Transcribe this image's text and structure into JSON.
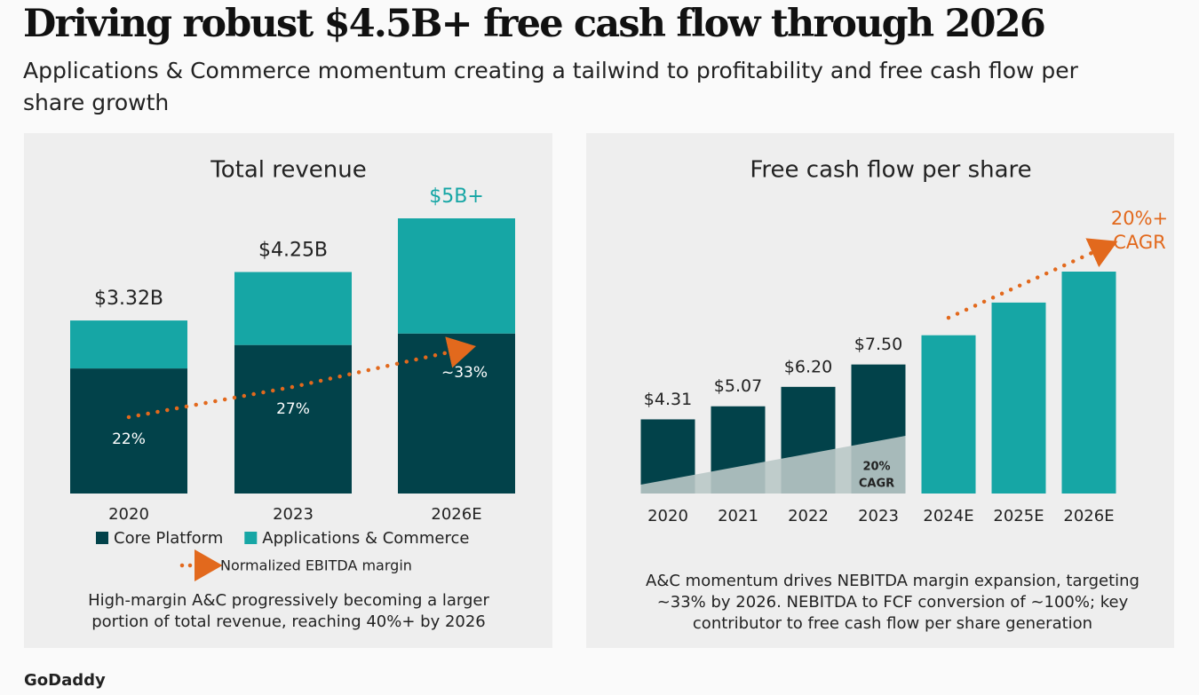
{
  "title": "Driving robust $4.5B+ free cash flow through 2026",
  "subtitle": "Applications & Commerce momentum creating a tailwind to profitability and free cash flow per share growth",
  "logo": "GoDaddy",
  "chart_data": [
    {
      "type": "stacked-bar",
      "title": "Total revenue",
      "categories": [
        "2020",
        "2023",
        "2026E"
      ],
      "series": [
        {
          "name": "Core Platform",
          "color": "#02424a",
          "values": [
            2.4,
            2.85,
            3.07
          ]
        },
        {
          "name": "Applications & Commerce",
          "color": "#16a6a5",
          "values": [
            0.92,
            1.4,
            2.21
          ]
        }
      ],
      "totals": {
        "values": [
          3.32,
          4.25,
          5.28
        ],
        "value_labels": [
          "$3.32B",
          "$4.25B",
          "$5B+"
        ],
        "colors": [
          "#222222",
          "#222222",
          "#16a6a5"
        ]
      },
      "margin": {
        "name": "Normalized EBITDA margin",
        "color": "#e2691d",
        "values": [
          22,
          27,
          33
        ],
        "value_labels": [
          "22%",
          "27%",
          "~33%"
        ]
      },
      "caption": "High-margin A&C progressively becoming a larger portion of total revenue, reaching 40%+ by 2026"
    },
    {
      "type": "bar",
      "title": "Free cash flow per share",
      "categories": [
        "2020",
        "2021",
        "2022",
        "2023",
        "2024E",
        "2025E",
        "2026E"
      ],
      "values": [
        4.31,
        5.07,
        6.2,
        7.5,
        9.2,
        11.1,
        12.9
      ],
      "value_labels": [
        "$4.31",
        "$5.07",
        "$6.20",
        "$7.50",
        null,
        null,
        null
      ],
      "colors": [
        "#02424a",
        "#02424a",
        "#02424a",
        "#02424a",
        "#16a6a5",
        "#16a6a5",
        "#16a6a5"
      ],
      "inner_annotation": [
        "20%",
        "CAGR"
      ],
      "outer_annotation": [
        "20%+",
        "CAGR"
      ],
      "annotation_color": "#e2691d",
      "caption": "A&C momentum drives NEBITDA margin expansion, targeting ~33% by 2026. NEBITDA to FCF conversion of ~100%; key contributor to free cash flow per share generation"
    }
  ]
}
